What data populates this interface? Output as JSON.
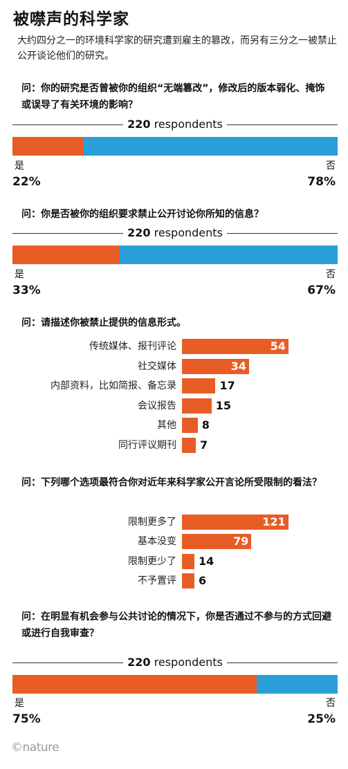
{
  "title": "被噤声的科学家",
  "subtitle": "大约四分之一的环境科学家的研究遭到雇主的篡改，而另有三分之一被禁止公开谈论他们的研究。",
  "logo": "©nature",
  "colors": {
    "yes": "#e85d25",
    "no": "#2a9fd8",
    "bar": "#e85d25"
  },
  "chart_data": [
    {
      "type": "bar",
      "question": "问：你的研究是否曾被你的组织“无端篡改”，修改后的版本弱化、掩饰或误导了有关环境的影响？",
      "respondents_num": "220",
      "respondents_word": "respondents",
      "categories": [
        "是",
        "否"
      ],
      "values": [
        22,
        78
      ],
      "labels": [
        "22%",
        "78%"
      ]
    },
    {
      "type": "bar",
      "question": "问：你是否被你的组织要求禁止公开讨论你所知的信息？",
      "respondents_num": "220",
      "respondents_word": "respondents",
      "categories": [
        "是",
        "否"
      ],
      "values": [
        33,
        67
      ],
      "labels": [
        "33%",
        "67%"
      ]
    },
    {
      "type": "bar",
      "question": "问：请描述你被禁止提供的信息形式。",
      "categories": [
        "传统媒体、报刊评论",
        "社交媒体",
        "内部资料，比如简报、备忘录",
        "会议报告",
        "其他",
        "同行评议期刊"
      ],
      "values": [
        54,
        34,
        17,
        15,
        8,
        7
      ]
    },
    {
      "type": "bar",
      "question": "问：下列哪个选项最符合你对近年来科学家公开言论所受限制的看法？",
      "categories": [
        "限制更多了",
        "基本没变",
        "限制更少了",
        "不予置评"
      ],
      "values": [
        121,
        79,
        14,
        6
      ]
    },
    {
      "type": "bar",
      "question": "问：在明显有机会参与公共讨论的情况下，你是否通过不参与的方式回避或进行自我审查？",
      "respondents_num": "220",
      "respondents_word": "respondents",
      "categories": [
        "是",
        "否"
      ],
      "values": [
        75,
        25
      ],
      "labels": [
        "75%",
        "25%"
      ]
    }
  ]
}
